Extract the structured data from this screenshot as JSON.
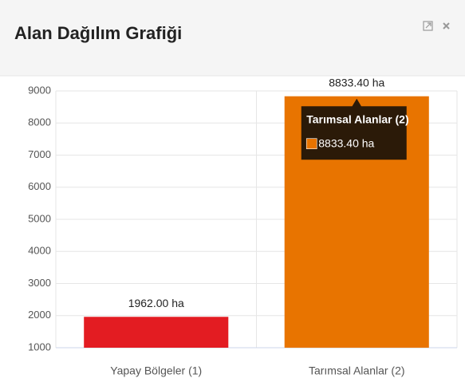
{
  "chart_data": {
    "type": "bar",
    "title": "Alan Dağılım Grafiği",
    "categories": [
      "Yapay Bölgeler (1)",
      "Tarımsal Alanlar (2)"
    ],
    "values": [
      1962.0,
      8833.4
    ],
    "value_labels": [
      "1962.00 ha",
      "8833.40 ha"
    ],
    "colors": [
      "#e31c22",
      "#e87400"
    ],
    "ylim": [
      1000,
      9000
    ],
    "yticks": [
      1000,
      2000,
      3000,
      4000,
      5000,
      6000,
      7000,
      8000,
      9000
    ],
    "grid": true
  }
}
